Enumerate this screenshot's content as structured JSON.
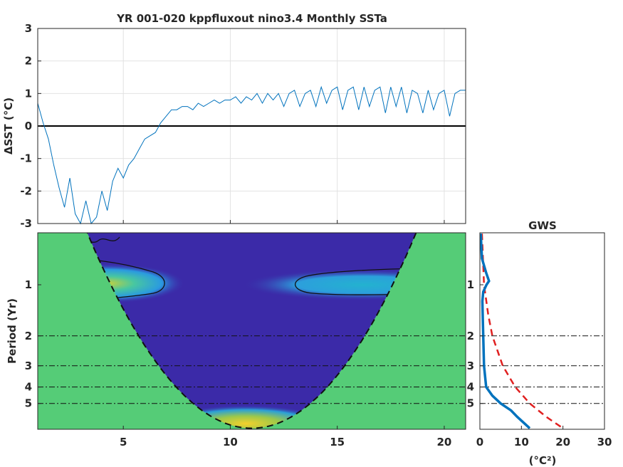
{
  "chart_data": [
    {
      "type": "line",
      "title": "YR 001-020 kppfluxout nino3.4 Monthly SSTa",
      "ylabel": "ΔSST (°C)",
      "xlim": [
        1,
        21
      ],
      "ylim": [
        -3,
        3
      ],
      "yticks": [
        3,
        2,
        1,
        0,
        -1,
        -2,
        -3
      ],
      "xticks": [
        5,
        10,
        15,
        20
      ],
      "grid": true,
      "zero_line": true,
      "line_color": "#0072bd",
      "series": [
        {
          "x": [
            1.0,
            1.25,
            1.5,
            1.75,
            2.0,
            2.25,
            2.5,
            2.75,
            3.0,
            3.25,
            3.5,
            3.75,
            4.0,
            4.25,
            4.5,
            4.75,
            5.0,
            5.25,
            5.5,
            5.75,
            6.0,
            6.25,
            6.5,
            6.75,
            7.0,
            7.25,
            7.5,
            7.75,
            8.0,
            8.25,
            8.5,
            8.75,
            9.0,
            9.25,
            9.5,
            9.75,
            10.0,
            10.25,
            10.5,
            10.75,
            11.0,
            11.25,
            11.5,
            11.75,
            12.0,
            12.25,
            12.5,
            12.75,
            13.0,
            13.25,
            13.5,
            13.75,
            14.0,
            14.25,
            14.5,
            14.75,
            15.0,
            15.25,
            15.5,
            15.75,
            16.0,
            16.25,
            16.5,
            16.75,
            17.0,
            17.25,
            17.5,
            17.75,
            18.0,
            18.25,
            18.5,
            18.75,
            19.0,
            19.25,
            19.5,
            19.75,
            20.0,
            20.25,
            20.5,
            20.75,
            21.0
          ],
          "values": [
            0.7,
            0.1,
            -0.4,
            -1.2,
            -1.9,
            -2.5,
            -1.6,
            -2.7,
            -3.0,
            -2.3,
            -3.0,
            -2.8,
            -2.0,
            -2.6,
            -1.7,
            -1.3,
            -1.6,
            -1.2,
            -1.0,
            -0.7,
            -0.4,
            -0.3,
            -0.2,
            0.1,
            0.3,
            0.5,
            0.5,
            0.6,
            0.6,
            0.5,
            0.7,
            0.6,
            0.7,
            0.8,
            0.7,
            0.8,
            0.8,
            0.9,
            0.7,
            0.9,
            0.8,
            1.0,
            0.7,
            1.0,
            0.8,
            1.0,
            0.6,
            1.0,
            1.1,
            0.6,
            1.0,
            1.1,
            0.6,
            1.2,
            0.7,
            1.1,
            1.2,
            0.5,
            1.1,
            1.2,
            0.5,
            1.2,
            0.6,
            1.1,
            1.2,
            0.4,
            1.2,
            0.6,
            1.2,
            0.4,
            1.1,
            1.0,
            0.4,
            1.1,
            0.5,
            1.0,
            1.1,
            0.3,
            1.0,
            1.1,
            1.1
          ]
        }
      ]
    },
    {
      "type": "heatmap",
      "ylabel": "Period (Yr)",
      "xlim": [
        1,
        21
      ],
      "xticks": [
        5,
        10,
        15,
        20
      ],
      "yticks": [
        1,
        2,
        3,
        4,
        5
      ],
      "yscale": "log",
      "reference_lines": [
        2,
        3,
        4,
        5
      ],
      "colors": {
        "background": "#3b2aa8",
        "masked": "#55cc77",
        "low": "#3b2aa8",
        "mid": "#2c9fdc",
        "high": "#f4d02c"
      },
      "features": [
        {
          "period": 1.0,
          "x_start": 1.5,
          "x_end": 7.0,
          "peak_x": 3.0,
          "level": "high"
        },
        {
          "period": 1.0,
          "x_start": 13.0,
          "x_end": 20.0,
          "peak_x": 17.0,
          "level": "mid"
        },
        {
          "period": 7.0,
          "x_start": 8.5,
          "x_end": 11.5,
          "peak_x": 11.0,
          "level": "high"
        }
      ]
    },
    {
      "type": "line",
      "title": "GWS",
      "xlabel": "(°C²)",
      "xlim": [
        0,
        30
      ],
      "xticks": [
        0,
        10,
        20,
        30
      ],
      "yticks": [
        1,
        2,
        3,
        4,
        5
      ],
      "yscale": "log",
      "series": [
        {
          "style": "solid",
          "color": "#0072bd",
          "periods": [
            0.5,
            0.7,
            0.85,
            0.95,
            1.0,
            1.1,
            1.25,
            1.6,
            2.0,
            3.0,
            4.0,
            4.5,
            5.0,
            5.5,
            6.0,
            7.0
          ],
          "values": [
            0.2,
            0.5,
            1.5,
            2.2,
            1.6,
            0.8,
            0.6,
            0.7,
            0.8,
            1.0,
            1.5,
            3.0,
            5.0,
            7.5,
            9.0,
            12.0
          ]
        },
        {
          "style": "dashed",
          "color": "#e02020",
          "periods": [
            0.5,
            1.0,
            1.5,
            2.0,
            3.0,
            4.0,
            5.0,
            6.0,
            7.0
          ],
          "values": [
            0.5,
            1.0,
            2.0,
            3.0,
            5.5,
            8.5,
            12.0,
            16.0,
            20.0
          ]
        }
      ]
    }
  ]
}
